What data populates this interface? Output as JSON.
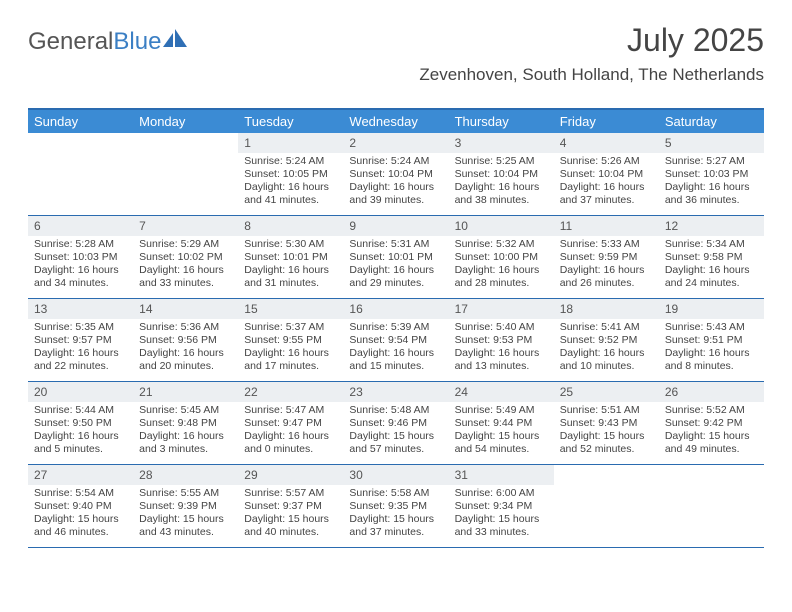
{
  "logo": {
    "text1": "General",
    "text2": "Blue"
  },
  "header": {
    "month_title": "July 2025",
    "location": "Zevenhoven, South Holland, The Netherlands"
  },
  "colors": {
    "header_bar": "#3b8bd4",
    "border": "#2a6bb0",
    "daynum_bg": "#eceff2",
    "text": "#444444",
    "logo_gray": "#555555",
    "logo_blue": "#3b7fc4"
  },
  "day_names": [
    "Sunday",
    "Monday",
    "Tuesday",
    "Wednesday",
    "Thursday",
    "Friday",
    "Saturday"
  ],
  "weeks": [
    [
      null,
      null,
      {
        "n": "1",
        "sr": "5:24 AM",
        "ss": "10:05 PM",
        "dl": "16 hours and 41 minutes."
      },
      {
        "n": "2",
        "sr": "5:24 AM",
        "ss": "10:04 PM",
        "dl": "16 hours and 39 minutes."
      },
      {
        "n": "3",
        "sr": "5:25 AM",
        "ss": "10:04 PM",
        "dl": "16 hours and 38 minutes."
      },
      {
        "n": "4",
        "sr": "5:26 AM",
        "ss": "10:04 PM",
        "dl": "16 hours and 37 minutes."
      },
      {
        "n": "5",
        "sr": "5:27 AM",
        "ss": "10:03 PM",
        "dl": "16 hours and 36 minutes."
      }
    ],
    [
      {
        "n": "6",
        "sr": "5:28 AM",
        "ss": "10:03 PM",
        "dl": "16 hours and 34 minutes."
      },
      {
        "n": "7",
        "sr": "5:29 AM",
        "ss": "10:02 PM",
        "dl": "16 hours and 33 minutes."
      },
      {
        "n": "8",
        "sr": "5:30 AM",
        "ss": "10:01 PM",
        "dl": "16 hours and 31 minutes."
      },
      {
        "n": "9",
        "sr": "5:31 AM",
        "ss": "10:01 PM",
        "dl": "16 hours and 29 minutes."
      },
      {
        "n": "10",
        "sr": "5:32 AM",
        "ss": "10:00 PM",
        "dl": "16 hours and 28 minutes."
      },
      {
        "n": "11",
        "sr": "5:33 AM",
        "ss": "9:59 PM",
        "dl": "16 hours and 26 minutes."
      },
      {
        "n": "12",
        "sr": "5:34 AM",
        "ss": "9:58 PM",
        "dl": "16 hours and 24 minutes."
      }
    ],
    [
      {
        "n": "13",
        "sr": "5:35 AM",
        "ss": "9:57 PM",
        "dl": "16 hours and 22 minutes."
      },
      {
        "n": "14",
        "sr": "5:36 AM",
        "ss": "9:56 PM",
        "dl": "16 hours and 20 minutes."
      },
      {
        "n": "15",
        "sr": "5:37 AM",
        "ss": "9:55 PM",
        "dl": "16 hours and 17 minutes."
      },
      {
        "n": "16",
        "sr": "5:39 AM",
        "ss": "9:54 PM",
        "dl": "16 hours and 15 minutes."
      },
      {
        "n": "17",
        "sr": "5:40 AM",
        "ss": "9:53 PM",
        "dl": "16 hours and 13 minutes."
      },
      {
        "n": "18",
        "sr": "5:41 AM",
        "ss": "9:52 PM",
        "dl": "16 hours and 10 minutes."
      },
      {
        "n": "19",
        "sr": "5:43 AM",
        "ss": "9:51 PM",
        "dl": "16 hours and 8 minutes."
      }
    ],
    [
      {
        "n": "20",
        "sr": "5:44 AM",
        "ss": "9:50 PM",
        "dl": "16 hours and 5 minutes."
      },
      {
        "n": "21",
        "sr": "5:45 AM",
        "ss": "9:48 PM",
        "dl": "16 hours and 3 minutes."
      },
      {
        "n": "22",
        "sr": "5:47 AM",
        "ss": "9:47 PM",
        "dl": "16 hours and 0 minutes."
      },
      {
        "n": "23",
        "sr": "5:48 AM",
        "ss": "9:46 PM",
        "dl": "15 hours and 57 minutes."
      },
      {
        "n": "24",
        "sr": "5:49 AM",
        "ss": "9:44 PM",
        "dl": "15 hours and 54 minutes."
      },
      {
        "n": "25",
        "sr": "5:51 AM",
        "ss": "9:43 PM",
        "dl": "15 hours and 52 minutes."
      },
      {
        "n": "26",
        "sr": "5:52 AM",
        "ss": "9:42 PM",
        "dl": "15 hours and 49 minutes."
      }
    ],
    [
      {
        "n": "27",
        "sr": "5:54 AM",
        "ss": "9:40 PM",
        "dl": "15 hours and 46 minutes."
      },
      {
        "n": "28",
        "sr": "5:55 AM",
        "ss": "9:39 PM",
        "dl": "15 hours and 43 minutes."
      },
      {
        "n": "29",
        "sr": "5:57 AM",
        "ss": "9:37 PM",
        "dl": "15 hours and 40 minutes."
      },
      {
        "n": "30",
        "sr": "5:58 AM",
        "ss": "9:35 PM",
        "dl": "15 hours and 37 minutes."
      },
      {
        "n": "31",
        "sr": "6:00 AM",
        "ss": "9:34 PM",
        "dl": "15 hours and 33 minutes."
      },
      null,
      null
    ]
  ],
  "labels": {
    "sunrise": "Sunrise:",
    "sunset": "Sunset:",
    "daylight": "Daylight:"
  }
}
